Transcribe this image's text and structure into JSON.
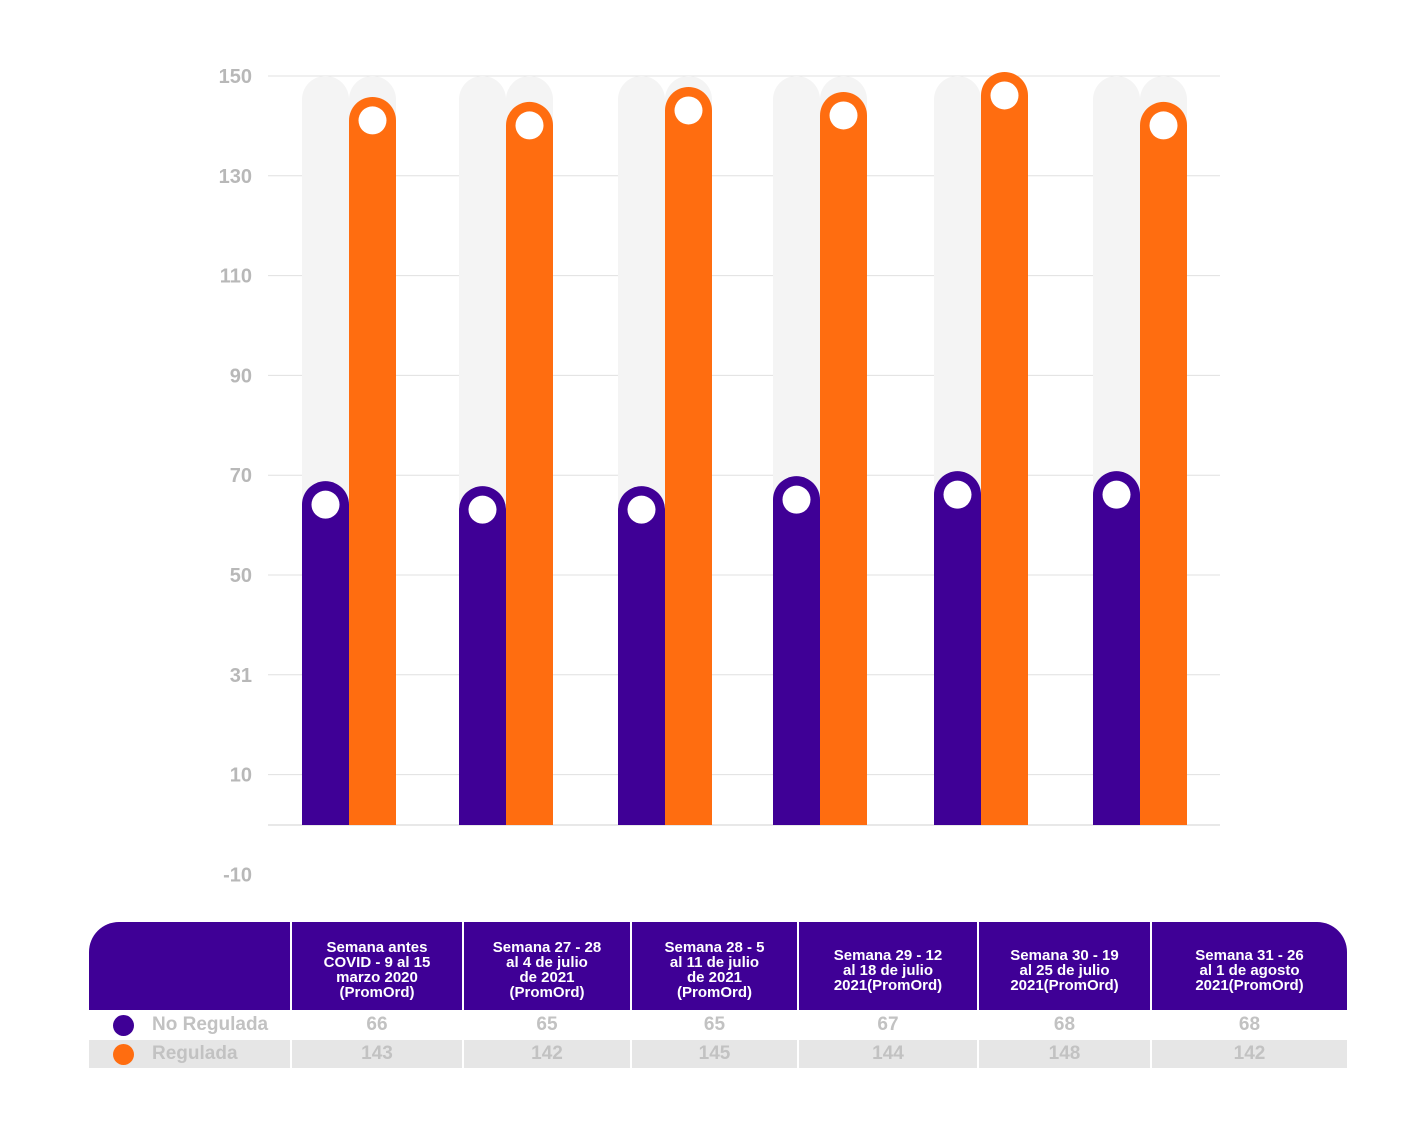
{
  "chart_data": {
    "type": "bar",
    "title": "",
    "xlabel": "",
    "ylabel": "",
    "y_ticks": [
      "150",
      "130",
      "110",
      "90",
      "70",
      "50",
      "31",
      "10",
      "-10"
    ],
    "ylim": [
      -10,
      150
    ],
    "categories": [
      "Semana antes COVID - 9 al 15 marzo 2020 (PromOrd)",
      "Semana 27 - 28 al 4 de julio de 2021 (PromOrd)",
      "Semana 28 - 5 al 11 de julio de 2021 (PromOrd)",
      "Semana 29 - 12 al 18 de julio 2021(PromOrd)",
      "Semana 30 - 19 al 25 de julio 2021(PromOrd)",
      "Semana 31 - 26 al 1 de agosto 2021(PromOrd)"
    ],
    "category_lines": [
      [
        "Semana antes",
        "COVID - 9 al 15",
        "marzo 2020",
        "(PromOrd)"
      ],
      [
        "Semana 27 - 28",
        "al 4 de julio",
        "de 2021",
        "(PromOrd)"
      ],
      [
        "Semana 28 - 5",
        "al 11 de julio",
        "de 2021",
        "(PromOrd)"
      ],
      [
        "Semana 29 - 12",
        "al 18 de julio",
        "2021(PromOrd)"
      ],
      [
        "Semana 30 - 19",
        "al 25 de julio",
        "2021(PromOrd)"
      ],
      [
        "Semana 31 - 26",
        "al 1 de agosto",
        "2021(PromOrd)"
      ]
    ],
    "series": [
      {
        "name": "No Regulada",
        "color": "#3f0096",
        "values": [
          66,
          65,
          65,
          67,
          68,
          68
        ]
      },
      {
        "name": "Regulada",
        "color": "#ff6d10",
        "values": [
          143,
          142,
          145,
          144,
          148,
          142
        ]
      }
    ]
  },
  "colors": {
    "header": "#3f0096",
    "track": "#f4f4f4",
    "grid": "#e0e0e0",
    "tick_text": "#b8b8b8"
  }
}
